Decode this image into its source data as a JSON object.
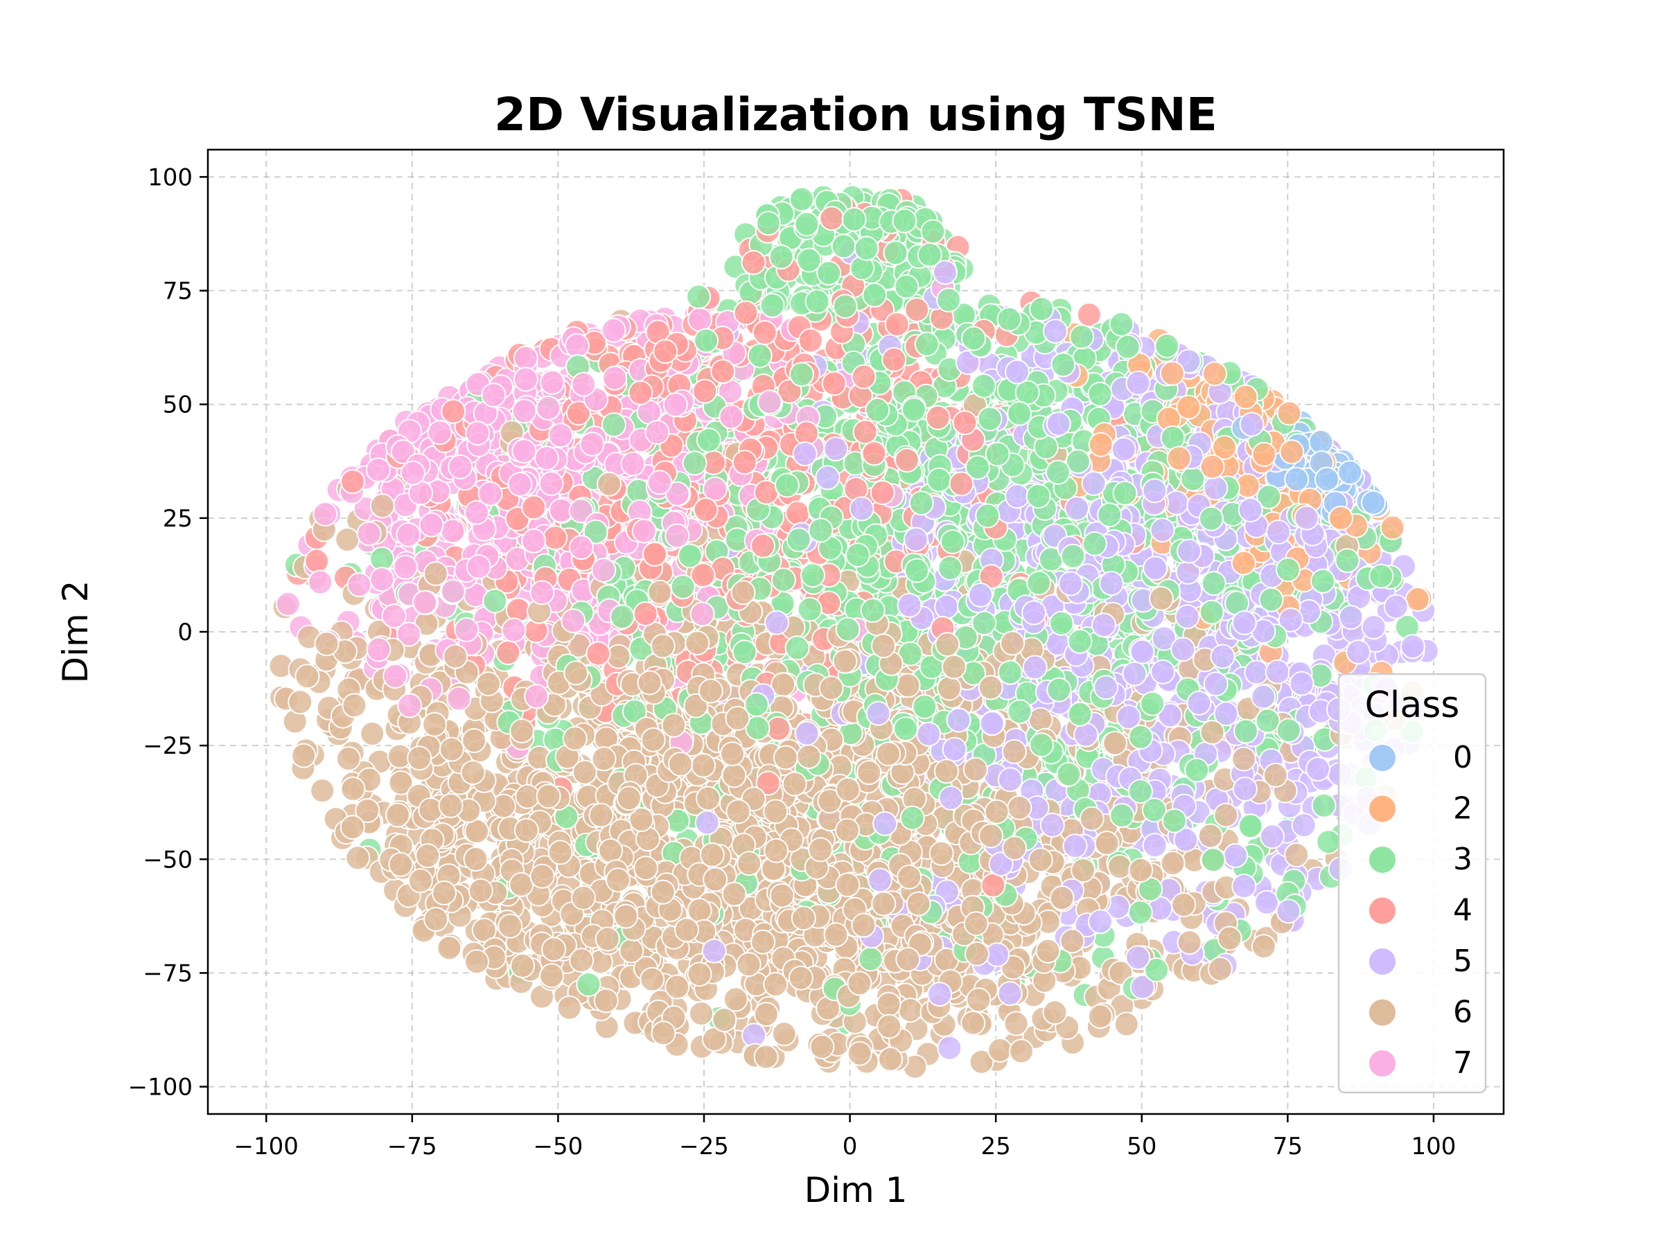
{
  "chart_data": {
    "type": "scatter",
    "title": "2D Visualization using TSNE",
    "xlabel": "Dim 1",
    "ylabel": "Dim 2",
    "xlim": [
      -110,
      112
    ],
    "ylim": [
      -106,
      106
    ],
    "xticks": [
      -100,
      -75,
      -50,
      -25,
      0,
      25,
      50,
      75,
      100
    ],
    "yticks": [
      -100,
      -75,
      -50,
      -25,
      0,
      25,
      50,
      75,
      100
    ],
    "xtick_labels": [
      "−100",
      "−75",
      "−50",
      "−25",
      "0",
      "25",
      "50",
      "75",
      "100"
    ],
    "ytick_labels": [
      "−100",
      "−75",
      "−50",
      "−25",
      "0",
      "25",
      "50",
      "75",
      "100"
    ],
    "grid": true,
    "legend": {
      "title": "Class",
      "position": "lower-right",
      "entries": [
        {
          "label": "0",
          "color": "#a1c9f4"
        },
        {
          "label": "2",
          "color": "#ffb482"
        },
        {
          "label": "3",
          "color": "#8de5a1"
        },
        {
          "label": "4",
          "color": "#ff9f9b"
        },
        {
          "label": "5",
          "color": "#d0bbff"
        },
        {
          "label": "6",
          "color": "#debb9b"
        },
        {
          "label": "7",
          "color": "#fab0e4"
        }
      ]
    },
    "series": [
      {
        "name": "0",
        "color": "#a1c9f4",
        "count": 120,
        "center": [
          88,
          38
        ],
        "spread": [
          8,
          6
        ]
      },
      {
        "name": "2",
        "color": "#ffb482",
        "count": 220,
        "center": [
          72,
          45
        ],
        "spread": [
          14,
          18
        ]
      },
      {
        "name": "3",
        "color": "#8de5a1",
        "count": 1500,
        "center": [
          25,
          25
        ],
        "spread": [
          40,
          42
        ]
      },
      {
        "name": "4",
        "color": "#ff9f9b",
        "count": 600,
        "center": [
          -25,
          40
        ],
        "spread": [
          30,
          28
        ]
      },
      {
        "name": "5",
        "color": "#d0bbff",
        "count": 1100,
        "center": [
          55,
          5
        ],
        "spread": [
          30,
          38
        ]
      },
      {
        "name": "6",
        "color": "#debb9b",
        "count": 2200,
        "center": [
          -20,
          -45
        ],
        "spread": [
          45,
          30
        ]
      },
      {
        "name": "7",
        "color": "#fab0e4",
        "count": 700,
        "center": [
          -55,
          38
        ],
        "spread": [
          22,
          22
        ]
      }
    ]
  }
}
